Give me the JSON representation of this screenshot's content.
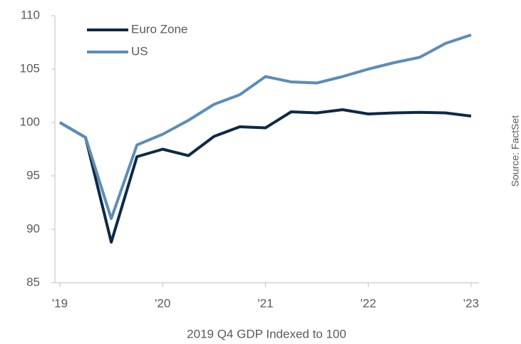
{
  "chart_data": {
    "type": "line",
    "x_label": "2019 Q4 GDP Indexed to 100",
    "source": "Source: FactSet",
    "categories": [
      "'19",
      null,
      null,
      null,
      "'20",
      null,
      null,
      null,
      "'21",
      null,
      null,
      null,
      "'22",
      null,
      null,
      null,
      "'23"
    ],
    "series": [
      {
        "name": "Euro Zone",
        "color": "#0d2a45",
        "values": [
          100,
          98.6,
          88.8,
          96.8,
          97.5,
          96.9,
          98.7,
          99.6,
          99.5,
          101.0,
          100.9,
          101.2,
          100.8,
          100.9,
          100.95,
          100.9,
          100.6
        ]
      },
      {
        "name": "US",
        "color": "#5b8db8",
        "values": [
          100,
          98.6,
          91.0,
          97.9,
          98.9,
          100.2,
          101.7,
          102.6,
          104.3,
          103.8,
          103.7,
          104.3,
          105.0,
          105.6,
          106.1,
          107.4,
          108.2
        ]
      }
    ],
    "ylim": [
      85,
      110
    ],
    "yticks": [
      85,
      90,
      95,
      100,
      105,
      110
    ],
    "legend": "upper left"
  }
}
